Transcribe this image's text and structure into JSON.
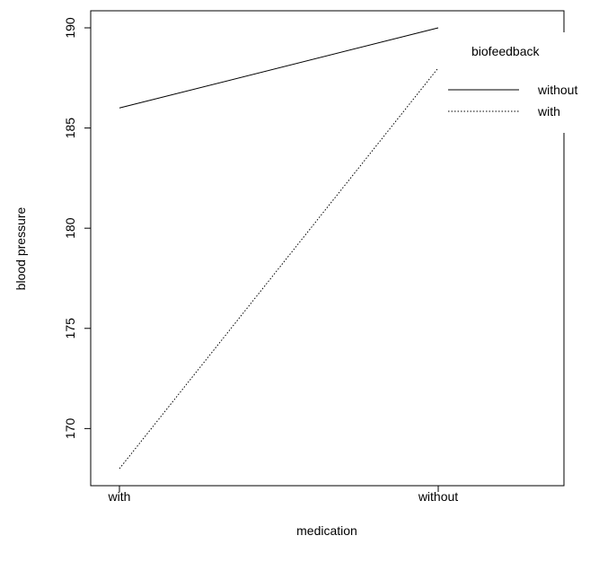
{
  "chart_data": {
    "type": "line",
    "title": "",
    "xlabel": "medication",
    "ylabel": "blood pressure",
    "categories": [
      "with",
      "without"
    ],
    "ylim": [
      167,
      191
    ],
    "yticks": [
      170,
      175,
      180,
      185,
      190
    ],
    "grid": false,
    "legend": {
      "title": "biofeedback",
      "placement": "top-right"
    },
    "series": [
      {
        "name": "without",
        "values": [
          186,
          190
        ],
        "linestyle": "solid",
        "color": "#000000"
      },
      {
        "name": "with",
        "values": [
          168,
          188
        ],
        "linestyle": "dotted",
        "color": "#000000"
      }
    ]
  }
}
